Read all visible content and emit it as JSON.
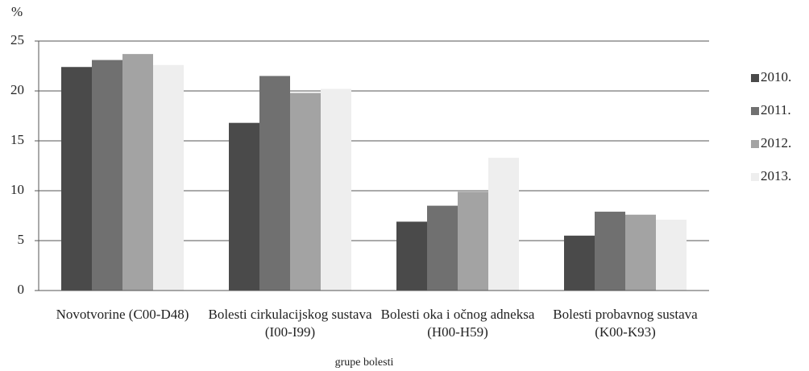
{
  "chart_data": {
    "type": "bar",
    "y_label": "%",
    "x_label": "grupe bolesti",
    "categories": [
      "Novotvorine (C00-D48)",
      "Bolesti cirkulacijskog sustava (I00-I99)",
      "Bolesti oka i očnog adneksa (H00-H59)",
      "Bolesti probavnog sustava (K00-K93)"
    ],
    "series": [
      {
        "name": "2010.",
        "color": "#4a4a4a",
        "values": [
          22.4,
          16.8,
          6.9,
          5.5
        ]
      },
      {
        "name": "2011.",
        "color": "#707070",
        "values": [
          23.1,
          21.5,
          8.5,
          7.9
        ]
      },
      {
        "name": "2012.",
        "color": "#a3a3a3",
        "values": [
          23.7,
          19.8,
          9.9,
          7.6
        ]
      },
      {
        "name": "2013.",
        "color": "#eeeeee",
        "values": [
          22.6,
          20.2,
          13.3,
          7.1
        ]
      }
    ],
    "ylim": [
      0,
      25
    ],
    "yticks": [
      0,
      5,
      10,
      15,
      20,
      25
    ],
    "grid": true,
    "legend": "right"
  }
}
